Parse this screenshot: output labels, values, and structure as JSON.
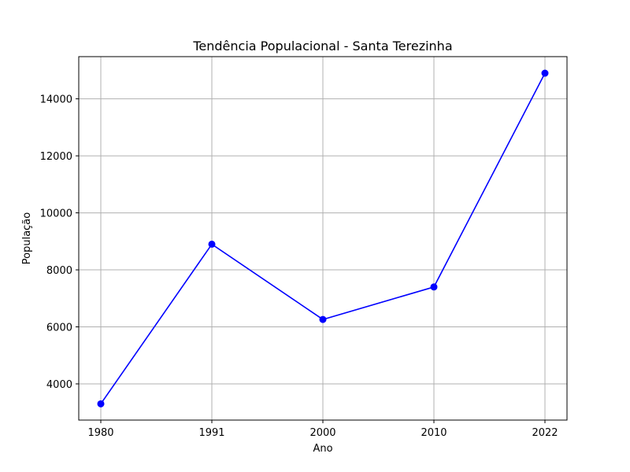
{
  "chart_data": {
    "type": "line",
    "title": "Tendência Populacional - Santa Terezinha",
    "xlabel": "Ano",
    "ylabel": "População",
    "categories": [
      "1980",
      "1991",
      "2000",
      "2010",
      "2022"
    ],
    "series": [
      {
        "values": [
          3300,
          8900,
          6260,
          7400,
          14900
        ],
        "color": "#0000ff",
        "marker": "circle"
      }
    ],
    "yticks": [
      4000,
      6000,
      8000,
      10000,
      12000,
      14000
    ],
    "ylim": [
      2730,
      15480
    ],
    "grid": true
  }
}
